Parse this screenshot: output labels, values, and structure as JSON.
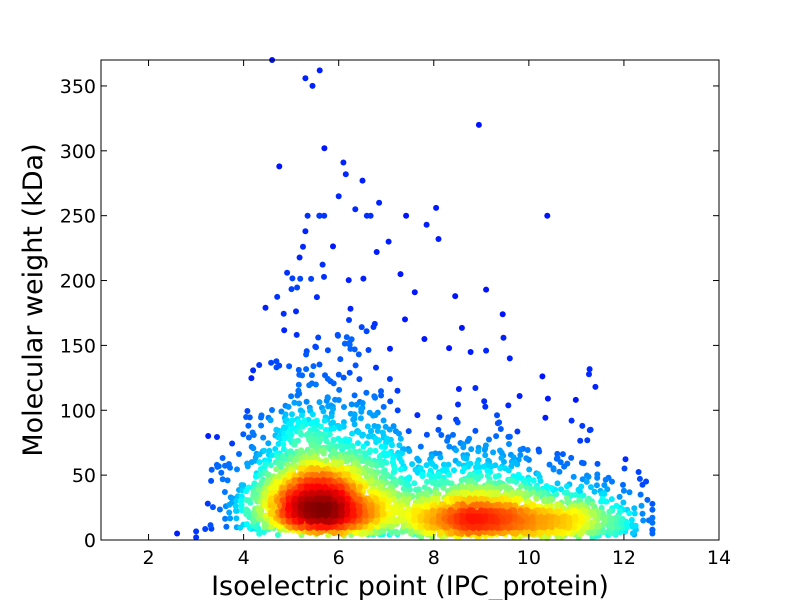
{
  "chart_data": {
    "type": "scatter",
    "title": "",
    "xlabel": "Isoelectric point (IPC_protein)",
    "ylabel": "Molecular weight (kDa)",
    "xlim": [
      1,
      14
    ],
    "ylim": [
      0,
      370
    ],
    "xticks": [
      2,
      4,
      6,
      8,
      10,
      12,
      14
    ],
    "yticks": [
      0,
      50,
      100,
      150,
      200,
      250,
      300,
      350
    ],
    "grid": false,
    "legend": "none",
    "colormap": "jet",
    "point_color_encodes": "point density",
    "density_peaks": [
      {
        "x": 5.5,
        "y": 30
      },
      {
        "x": 8.8,
        "y": 14
      }
    ],
    "outliers": [
      {
        "x": 4.6,
        "y": 370
      },
      {
        "x": 5.3,
        "y": 356
      },
      {
        "x": 5.6,
        "y": 362
      },
      {
        "x": 5.45,
        "y": 350
      },
      {
        "x": 8.95,
        "y": 320
      },
      {
        "x": 5.7,
        "y": 302
      },
      {
        "x": 4.75,
        "y": 288
      },
      {
        "x": 6.1,
        "y": 291
      },
      {
        "x": 6.15,
        "y": 282
      },
      {
        "x": 6.5,
        "y": 277
      },
      {
        "x": 6.0,
        "y": 265
      },
      {
        "x": 6.85,
        "y": 260
      },
      {
        "x": 8.05,
        "y": 256
      },
      {
        "x": 6.35,
        "y": 255
      },
      {
        "x": 5.6,
        "y": 250
      },
      {
        "x": 7.85,
        "y": 243
      },
      {
        "x": 5.3,
        "y": 238
      },
      {
        "x": 8.1,
        "y": 232
      },
      {
        "x": 7.05,
        "y": 230
      },
      {
        "x": 6.8,
        "y": 222
      },
      {
        "x": 5.25,
        "y": 226
      },
      {
        "x": 7.3,
        "y": 205
      },
      {
        "x": 9.1,
        "y": 193
      },
      {
        "x": 8.45,
        "y": 188
      },
      {
        "x": 7.6,
        "y": 191
      },
      {
        "x": 9.45,
        "y": 174
      },
      {
        "x": 9.1,
        "y": 146
      },
      {
        "x": 9.6,
        "y": 140
      },
      {
        "x": 11.4,
        "y": 118
      },
      {
        "x": 10.4,
        "y": 109
      },
      {
        "x": 4.1,
        "y": 88
      },
      {
        "x": 10.9,
        "y": 92
      },
      {
        "x": 11.3,
        "y": 85
      },
      {
        "x": 11.75,
        "y": 45
      },
      {
        "x": 12.0,
        "y": 38
      },
      {
        "x": 12.35,
        "y": 35
      },
      {
        "x": 2.6,
        "y": 5
      },
      {
        "x": 12.6,
        "y": 5
      },
      {
        "x": 3.0,
        "y": 2
      }
    ]
  }
}
